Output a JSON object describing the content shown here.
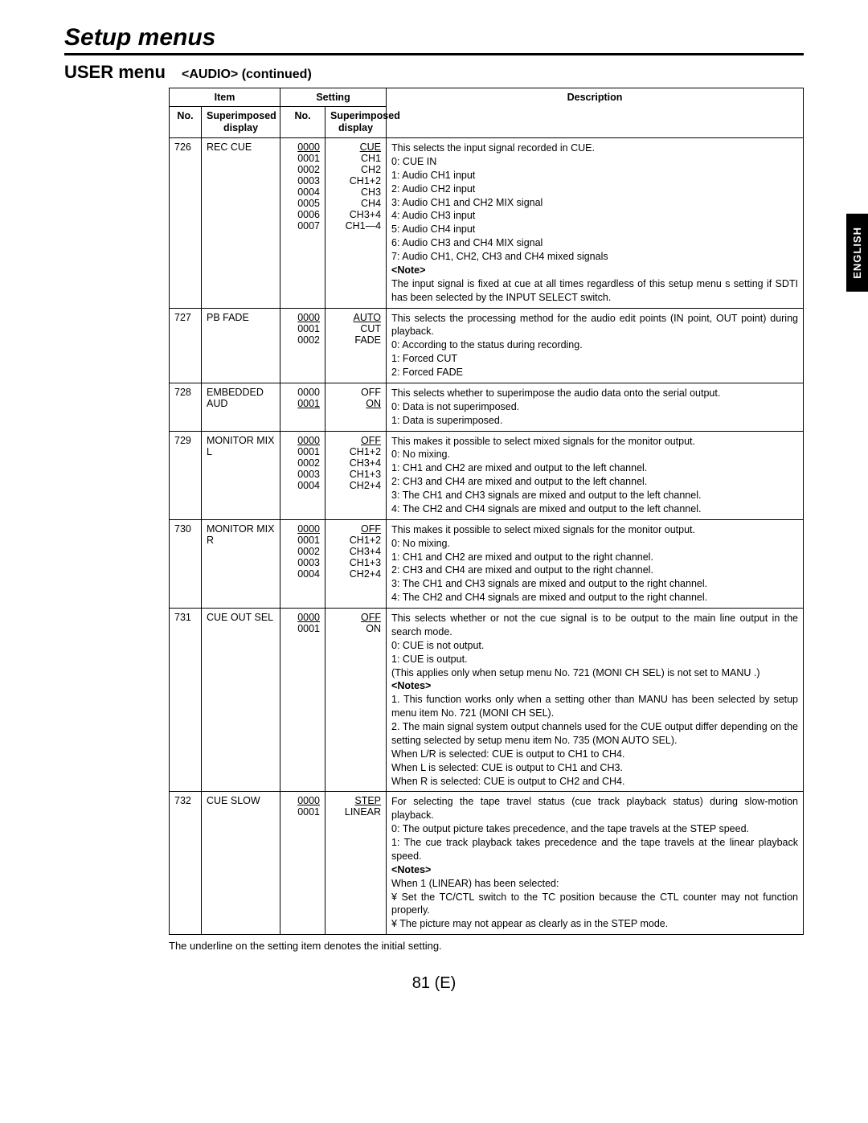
{
  "page": {
    "title": "Setup menus",
    "section_left": "USER menu",
    "section_right": "<AUDIO> (continued)",
    "side_tab": "ENGLISH",
    "footnote": "The underline on the setting item denotes the initial setting.",
    "page_number": "81 (E)"
  },
  "headers": {
    "item": "Item",
    "setting": "Setting",
    "description": "Description",
    "no": "No.",
    "superimposed_display": "Superimposed display"
  },
  "rows": [
    {
      "no": "726",
      "item": "REC CUE",
      "settings": [
        {
          "no": "0000",
          "disp": "CUE",
          "initial": true
        },
        {
          "no": "0001",
          "disp": "CH1"
        },
        {
          "no": "0002",
          "disp": "CH2"
        },
        {
          "no": "0003",
          "disp": "CH1+2"
        },
        {
          "no": "0004",
          "disp": "CH3"
        },
        {
          "no": "0005",
          "disp": "CH4"
        },
        {
          "no": "0006",
          "disp": "CH3+4"
        },
        {
          "no": "0007",
          "disp": "CH1—4"
        }
      ],
      "desc": [
        "This selects the input signal recorded in CUE.",
        "0: CUE IN",
        "1: Audio CH1 input",
        "2: Audio CH2 input",
        "3: Audio CH1 and CH2 MIX signal",
        "4: Audio CH3 input",
        "5: Audio CH4 input",
        "6: Audio CH3 and CH4 MIX signal",
        "7: Audio CH1, CH2, CH3 and CH4 mixed signals",
        {
          "b": "<Note>"
        },
        "The input signal is fixed at cue at all times regardless of this setup menu s setting if SDTI has been selected by the INPUT SELECT switch."
      ]
    },
    {
      "no": "727",
      "item": "PB FADE",
      "settings": [
        {
          "no": "0000",
          "disp": "AUTO",
          "initial": true
        },
        {
          "no": "0001",
          "disp": "CUT"
        },
        {
          "no": "0002",
          "disp": "FADE"
        }
      ],
      "desc": [
        "This selects the processing method for the audio edit points (IN point, OUT point) during playback.",
        "0: According to the status during recording.",
        "1: Forced CUT",
        "2: Forced FADE"
      ]
    },
    {
      "no": "728",
      "item": "EMBEDDED AUD",
      "settings": [
        {
          "no": "0000",
          "disp": "OFF"
        },
        {
          "no": "0001",
          "disp": "ON",
          "initial": true
        }
      ],
      "desc": [
        "This selects whether to superimpose the audio data onto the serial output.",
        "0: Data is not superimposed.",
        "1: Data is superimposed."
      ]
    },
    {
      "no": "729",
      "item": "MONITOR MIX L",
      "settings": [
        {
          "no": "0000",
          "disp": "OFF",
          "initial": true
        },
        {
          "no": "0001",
          "disp": "CH1+2"
        },
        {
          "no": "0002",
          "disp": "CH3+4"
        },
        {
          "no": "0003",
          "disp": "CH1+3"
        },
        {
          "no": "0004",
          "disp": "CH2+4"
        }
      ],
      "desc": [
        "This makes it possible to select mixed signals for the monitor output.",
        "0: No mixing.",
        "1: CH1 and CH2 are mixed and output to the left channel.",
        "2: CH3 and CH4 are mixed and output to the left channel.",
        "3: The CH1 and CH3 signals are mixed and output to the left channel.",
        "4: The CH2 and CH4 signals are mixed and output to the left channel."
      ]
    },
    {
      "no": "730",
      "item": "MONITOR MIX R",
      "settings": [
        {
          "no": "0000",
          "disp": "OFF",
          "initial": true
        },
        {
          "no": "0001",
          "disp": "CH1+2"
        },
        {
          "no": "0002",
          "disp": "CH3+4"
        },
        {
          "no": "0003",
          "disp": "CH1+3"
        },
        {
          "no": "0004",
          "disp": "CH2+4"
        }
      ],
      "desc": [
        "This makes it possible to select mixed signals for the monitor output.",
        "0: No mixing.",
        "1: CH1 and CH2 are mixed and output to the right channel.",
        "2: CH3 and CH4 are mixed and output to the right channel.",
        "3: The CH1 and CH3 signals are mixed and output to the right channel.",
        "4: The CH2 and CH4 signals are mixed and output to the right channel."
      ]
    },
    {
      "no": "731",
      "item": "CUE OUT SEL",
      "settings": [
        {
          "no": "0000",
          "disp": "OFF",
          "initial": true
        },
        {
          "no": "0001",
          "disp": "ON"
        }
      ],
      "desc": [
        "This selects whether or not the cue signal is to be output to the main line output in the search mode.",
        "0: CUE is not output.",
        "1: CUE is output.",
        "   (This applies only when setup menu No. 721 (MONI CH SEL) is not set to MANU .)",
        {
          "b": "<Notes>"
        },
        "1. This function works only when a setting other than MANU has been selected by setup menu item No. 721 (MONI CH SEL).",
        "2. The main signal system output channels used for the CUE output differ depending on the setting selected by setup menu item No. 735 (MON AUTO SEL).",
        "   When L/R is selected: CUE is output to CH1 to CH4.",
        "   When L is selected:    CUE is output to CH1 and CH3.",
        "   When R is selected:   CUE is output to CH2 and CH4."
      ]
    },
    {
      "no": "732",
      "item": "CUE SLOW",
      "settings": [
        {
          "no": "0000",
          "disp": "STEP",
          "initial": true
        },
        {
          "no": "0001",
          "disp": "LINEAR"
        }
      ],
      "desc": [
        "For selecting the tape travel status (cue track playback status) during slow-motion playback.",
        "0: The output picture takes precedence, and the tape travels at the STEP speed.",
        "1: The cue track playback takes precedence and the tape travels at the linear playback speed.",
        {
          "b": "<Notes>"
        },
        "When 1 (LINEAR) has been selected:",
        "¥ Set the TC/CTL switch to the TC position because the CTL counter may not function properly.",
        "¥ The picture may not appear as clearly as in the STEP mode."
      ]
    }
  ]
}
